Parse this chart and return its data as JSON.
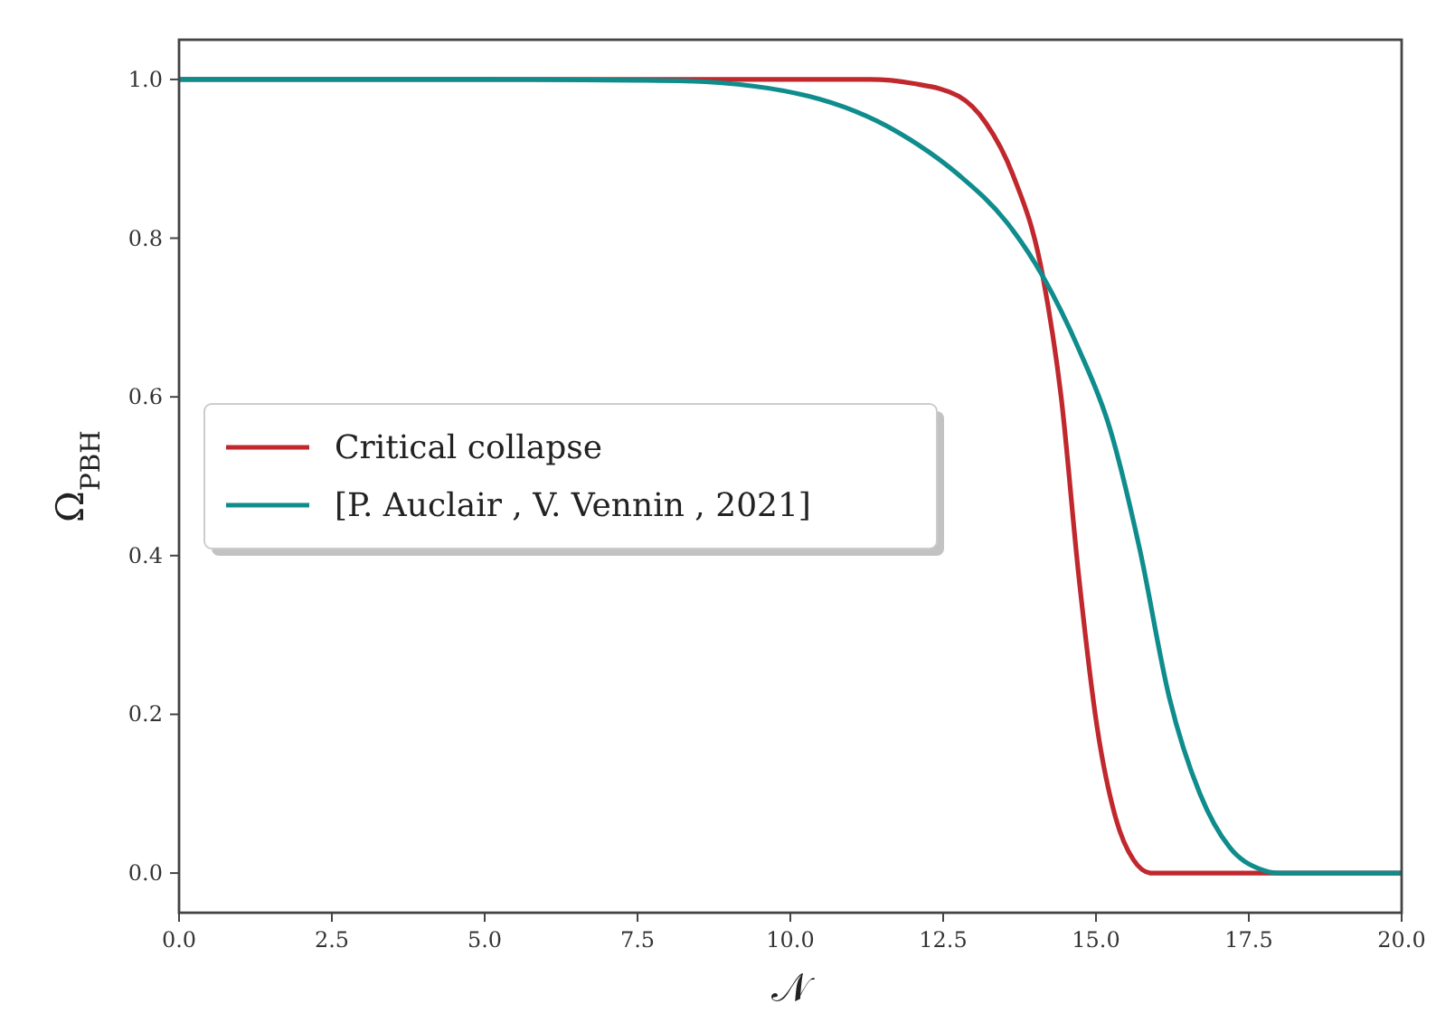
{
  "chart_data": {
    "type": "line",
    "xlabel": "𝒩",
    "ylabel": "Ω$_{PBH}$",
    "xlim": [
      0,
      20
    ],
    "ylim": [
      -0.05,
      1.05
    ],
    "xticks": [
      {
        "value": 0,
        "label": "0.0"
      },
      {
        "value": 2.5,
        "label": "2.5"
      },
      {
        "value": 5,
        "label": "5.0"
      },
      {
        "value": 7.5,
        "label": "7.5"
      },
      {
        "value": 10,
        "label": "10.0"
      },
      {
        "value": 12.5,
        "label": "12.5"
      },
      {
        "value": 15,
        "label": "15.0"
      },
      {
        "value": 17.5,
        "label": "17.5"
      },
      {
        "value": 20,
        "label": "20.0"
      }
    ],
    "yticks": [
      {
        "value": 0,
        "label": "0.0"
      },
      {
        "value": 0.2,
        "label": "0.2"
      },
      {
        "value": 0.4,
        "label": "0.4"
      },
      {
        "value": 0.6,
        "label": "0.6"
      },
      {
        "value": 0.8,
        "label": "0.8"
      },
      {
        "value": 1,
        "label": "1.0"
      }
    ],
    "legend": "left",
    "grid": false,
    "marker": "none",
    "line_style": "solid",
    "series": [
      {
        "name": "Critical collapse",
        "color": "#c0282d",
        "x": [
          0,
          5,
          10,
          11.3,
          12,
          12.75,
          13.2,
          13.64,
          14.13,
          14.43,
          14.72,
          15.02,
          15.32,
          15.61,
          15.9,
          17,
          20
        ],
        "values": [
          1,
          1,
          1,
          1,
          0.995,
          0.979,
          0.945,
          0.88,
          0.752,
          0.6,
          0.373,
          0.183,
          0.07,
          0.017,
          0,
          0,
          0
        ]
      },
      {
        "name": "[P. Auclair , V. Vennin , 2021]",
        "color": "#0f8c8c",
        "x": [
          0,
          5,
          7.5,
          8.31,
          10.29,
          11.77,
          12.75,
          13.54,
          14.13,
          14.72,
          15.22,
          15.71,
          16.2,
          16.7,
          17.19,
          17.68,
          18,
          20
        ],
        "values": [
          1,
          1,
          0.999,
          0.998,
          0.979,
          0.933,
          0.88,
          0.82,
          0.752,
          0.66,
          0.562,
          0.41,
          0.221,
          0.1,
          0.032,
          0.005,
          0,
          0
        ]
      }
    ]
  }
}
